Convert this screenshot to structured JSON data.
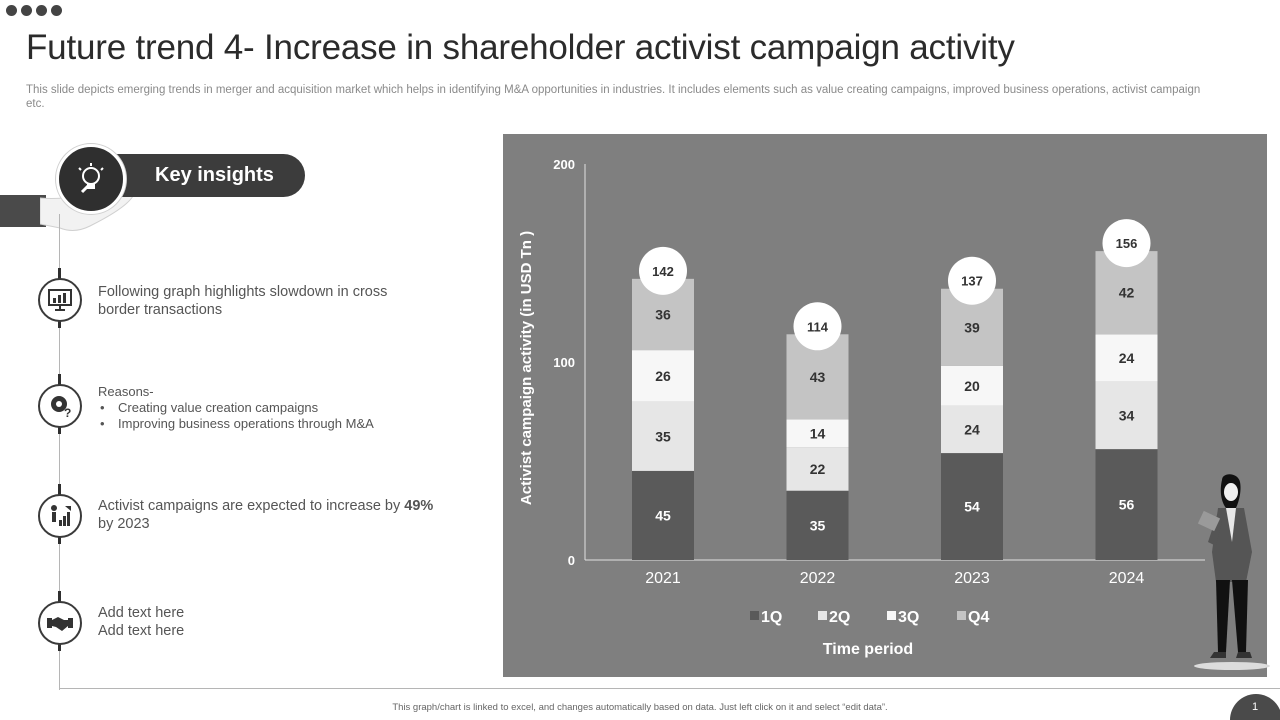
{
  "title": "Future trend 4- Increase in shareholder activist campaign activity",
  "subtitle": "This slide depicts emerging trends in merger and acquisition market which helps in identifying M&A opportunities in industries. It includes elements such as value creating campaigns, improved business operations, activist campaign etc.",
  "key_insights_label": "Key insights",
  "insights": {
    "first": {
      "line1": "Following graph highlights slowdown in cross",
      "line2": "border transactions"
    },
    "reasons": {
      "heading": "Reasons-",
      "items": [
        "Creating value creation campaigns",
        "Improving business operations through M&A"
      ]
    },
    "third": {
      "prefix": "Activist campaigns are expected to increase by ",
      "highlight": "49%",
      "line2": "by 2023"
    },
    "fourth": {
      "line1": "Add text here",
      "line2": "Add text here"
    }
  },
  "icons": [
    "lightbulb-icon",
    "monitor-chart-icon",
    "gear-question-icon",
    "growth-person-icon",
    "handshake-icon",
    "hand-icon",
    "businesswoman-illustration"
  ],
  "colors": {
    "panel": "#7f7f7f",
    "q1": "#5a5a5a",
    "q2": "#e6e6e6",
    "q3": "#f7f7f7",
    "q4": "#c4c4c4",
    "total_circle": "#ffffff"
  },
  "footer": "This graph/chart is linked to excel, and changes automatically based on data. Just left click on it and select “edit data”.",
  "page_number": "1",
  "chart_data": {
    "type": "bar",
    "stacked": true,
    "categories": [
      "2021",
      "2022",
      "2023",
      "2024"
    ],
    "series": [
      {
        "name": "1Q",
        "values": [
          45,
          35,
          54,
          56
        ]
      },
      {
        "name": "2Q",
        "values": [
          35,
          22,
          24,
          34
        ]
      },
      {
        "name": "3Q",
        "values": [
          26,
          14,
          20,
          24
        ]
      },
      {
        "name": "Q4",
        "values": [
          36,
          43,
          39,
          42
        ]
      }
    ],
    "totals": [
      142,
      114,
      137,
      156
    ],
    "xlabel": "Time period",
    "ylabel": "Activist campaign activity (in USD Tn )",
    "ylim": [
      0,
      200
    ],
    "yticks": [
      0,
      100,
      200
    ],
    "legend": "bottom",
    "grid": false
  }
}
